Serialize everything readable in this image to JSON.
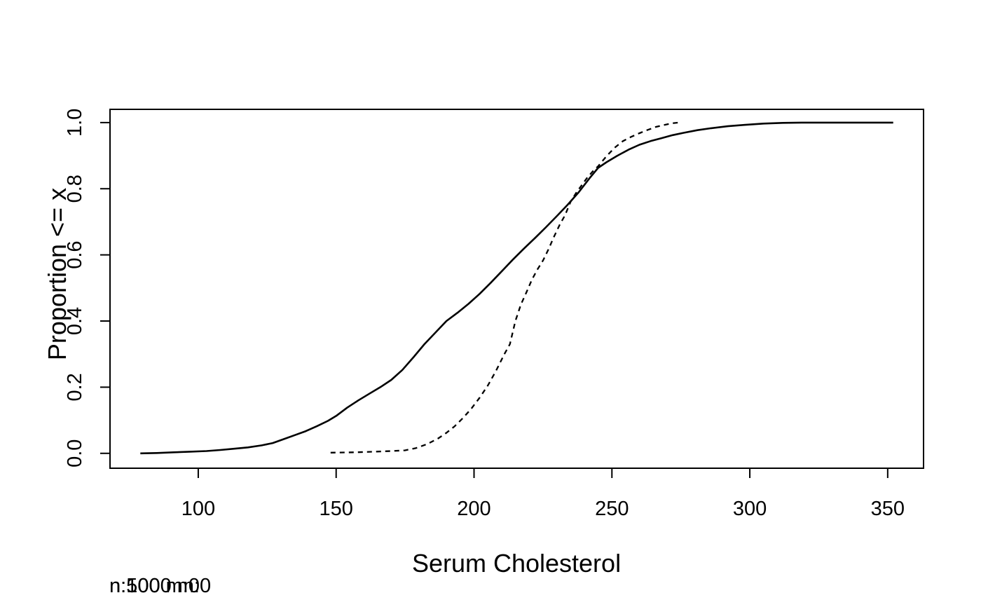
{
  "chart_data": {
    "type": "line",
    "subtype": "ecdf-step-curves",
    "title": "",
    "xlabel": "Serum Cholesterol",
    "ylabel": "Proportion <= x",
    "xlim": [
      68,
      363
    ],
    "ylim": [
      -0.045,
      1.04
    ],
    "x_ticks": [
      100,
      150,
      200,
      250,
      300,
      350
    ],
    "x_tick_labels": [
      "100",
      "150",
      "200",
      "250",
      "300",
      "350"
    ],
    "y_ticks": [
      0.0,
      0.2,
      0.4,
      0.6,
      0.8,
      1.0
    ],
    "y_tick_labels": [
      "0.0",
      "0.2",
      "0.4",
      "0.6",
      "0.8",
      "1.0"
    ],
    "grid": false,
    "legend": "none",
    "frame": "full-box",
    "line_color": "#000000",
    "background": "#ffffff",
    "series": [
      {
        "name": "ecdf-solid",
        "line_style": "solid",
        "annotation": "n:1000 m:0",
        "points": [
          [
            79,
            0
          ],
          [
            85,
            0.001
          ],
          [
            91,
            0.003
          ],
          [
            97,
            0.005
          ],
          [
            103,
            0.007
          ],
          [
            108,
            0.01
          ],
          [
            113,
            0.014
          ],
          [
            118,
            0.018
          ],
          [
            123,
            0.024
          ],
          [
            127,
            0.031
          ],
          [
            131,
            0.043
          ],
          [
            135,
            0.055
          ],
          [
            139,
            0.067
          ],
          [
            143,
            0.082
          ],
          [
            147,
            0.098
          ],
          [
            150,
            0.113
          ],
          [
            154,
            0.138
          ],
          [
            158,
            0.16
          ],
          [
            162,
            0.18
          ],
          [
            166,
            0.2
          ],
          [
            170,
            0.222
          ],
          [
            174,
            0.252
          ],
          [
            178,
            0.29
          ],
          [
            182,
            0.33
          ],
          [
            186,
            0.365
          ],
          [
            190,
            0.4
          ],
          [
            194,
            0.425
          ],
          [
            198,
            0.452
          ],
          [
            202,
            0.482
          ],
          [
            206,
            0.515
          ],
          [
            210,
            0.55
          ],
          [
            214,
            0.585
          ],
          [
            218,
            0.618
          ],
          [
            222,
            0.65
          ],
          [
            226,
            0.683
          ],
          [
            230,
            0.717
          ],
          [
            234,
            0.752
          ],
          [
            238,
            0.79
          ],
          [
            242,
            0.833
          ],
          [
            245,
            0.863
          ],
          [
            248,
            0.88
          ],
          [
            252,
            0.9
          ],
          [
            256,
            0.918
          ],
          [
            260,
            0.933
          ],
          [
            264,
            0.944
          ],
          [
            268,
            0.953
          ],
          [
            272,
            0.962
          ],
          [
            276,
            0.969
          ],
          [
            281,
            0.977
          ],
          [
            286,
            0.983
          ],
          [
            292,
            0.989
          ],
          [
            298,
            0.993
          ],
          [
            305,
            0.997
          ],
          [
            312,
            0.999
          ],
          [
            320,
            1
          ],
          [
            352,
            1
          ]
        ]
      },
      {
        "name": "ecdf-dashed",
        "line_style": "dashed",
        "annotation": "n:500 m:0",
        "points": [
          [
            148,
            0.002
          ],
          [
            157,
            0.003
          ],
          [
            164,
            0.005
          ],
          [
            170,
            0.007
          ],
          [
            175,
            0.009
          ],
          [
            179,
            0.016
          ],
          [
            183,
            0.028
          ],
          [
            187,
            0.045
          ],
          [
            190,
            0.062
          ],
          [
            193,
            0.082
          ],
          [
            196,
            0.107
          ],
          [
            199,
            0.135
          ],
          [
            202,
            0.168
          ],
          [
            205,
            0.205
          ],
          [
            208,
            0.25
          ],
          [
            211,
            0.3
          ],
          [
            213,
            0.33
          ],
          [
            215,
            0.4
          ],
          [
            217,
            0.45
          ],
          [
            219,
            0.487
          ],
          [
            221,
            0.525
          ],
          [
            223,
            0.556
          ],
          [
            225,
            0.583
          ],
          [
            227,
            0.617
          ],
          [
            229,
            0.655
          ],
          [
            231,
            0.69
          ],
          [
            233,
            0.72
          ],
          [
            235,
            0.76
          ],
          [
            237,
            0.787
          ],
          [
            239,
            0.81
          ],
          [
            241,
            0.833
          ],
          [
            243,
            0.852
          ],
          [
            245,
            0.868
          ],
          [
            248,
            0.898
          ],
          [
            251,
            0.924
          ],
          [
            254,
            0.944
          ],
          [
            257,
            0.957
          ],
          [
            260,
            0.968
          ],
          [
            263,
            0.978
          ],
          [
            266,
            0.987
          ],
          [
            269,
            0.993
          ],
          [
            272,
            0.998
          ],
          [
            274,
            1
          ]
        ]
      }
    ]
  }
}
